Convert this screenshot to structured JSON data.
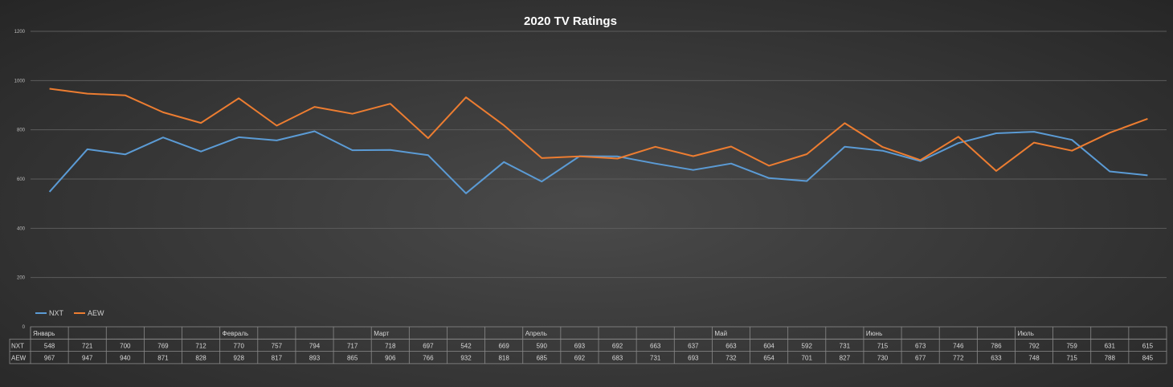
{
  "chart_data": {
    "type": "line",
    "title": "2020 TV Ratings",
    "ylim": [
      0,
      1200
    ],
    "yticks": [
      0,
      200,
      400,
      600,
      800,
      1000,
      1200
    ],
    "grid": true,
    "legend_position": "bottom-left",
    "month_labels": [
      "Январь",
      "",
      "",
      "",
      "",
      "Февраль",
      "",
      "",
      "",
      "Март",
      "",
      "",
      "",
      "Апрель",
      "",
      "",
      "",
      "",
      "Май",
      "",
      "",
      "",
      "Июнь",
      "",
      "",
      "",
      "Июль",
      "",
      "",
      ""
    ],
    "series": [
      {
        "name": "NXT",
        "color": "#5b9bd5",
        "values": [
          548,
          721,
          700,
          769,
          712,
          770,
          757,
          794,
          717,
          718,
          697,
          542,
          669,
          590,
          693,
          692,
          663,
          637,
          663,
          604,
          592,
          731,
          715,
          673,
          746,
          786,
          792,
          759,
          631,
          615
        ]
      },
      {
        "name": "AEW",
        "color": "#ed7d31",
        "values": [
          967,
          947,
          940,
          871,
          828,
          928,
          817,
          893,
          865,
          906,
          766,
          932,
          818,
          685,
          692,
          683,
          731,
          693,
          732,
          654,
          701,
          827,
          730,
          677,
          772,
          633,
          748,
          715,
          788,
          845
        ]
      }
    ]
  }
}
